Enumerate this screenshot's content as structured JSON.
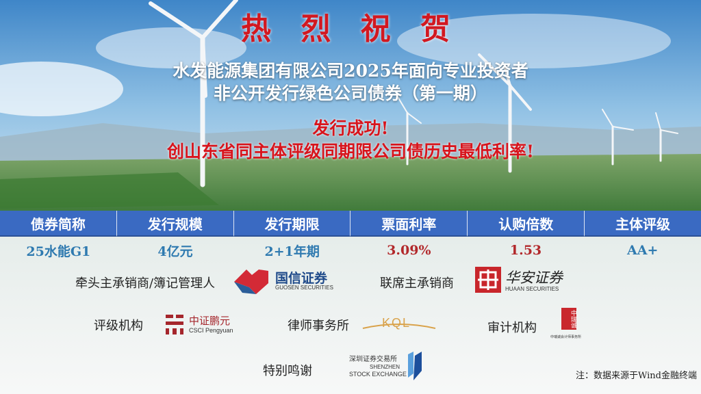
{
  "header": {
    "title": "热 烈 祝 贺",
    "subtitle_line1": "水发能源集团有限公司2025年面向专业投资者",
    "subtitle_line2": "非公开发行绿色公司债券（第一期）",
    "success": "发行成功!",
    "record": "创山东省同主体评级同期限公司债历史最低利率!"
  },
  "table": {
    "headers": [
      "债券简称",
      "发行规模",
      "发行期限",
      "票面利率",
      "认购倍数",
      "主体评级"
    ],
    "values": [
      "25水能G1",
      "4亿元",
      "2+1年期",
      "3.09%",
      "1.53",
      "AA+"
    ]
  },
  "institutions": {
    "lead_label": "牵头主承销商/簿记管理人",
    "lead_logo_cn": "国信证券",
    "lead_logo_en": "GUOSEN SECURITIES",
    "joint_label": "联席主承销商",
    "joint_logo_cn": "华安证券",
    "joint_logo_en": "HUAAN SECURITIES",
    "rating_label": "评级机构",
    "rating_logo_cn": "中证鹏元",
    "rating_logo_en": "CSCI Pengyuan",
    "law_label": "律师事务所",
    "law_logo": "KQL",
    "audit_label": "审计机构",
    "audit_logo_cn": "中瑞诚",
    "audit_logo_sub": "中瑞诚会计师事务所",
    "thanks_label": "特别鸣谢",
    "thanks_logo_cn": "深圳证券交易所",
    "thanks_logo_en1": "SHENZHEN",
    "thanks_logo_en2": "STOCK EXCHANGE"
  },
  "note": "注：数据来源于Wind金融终端",
  "colors": {
    "title_red": "#d21820",
    "table_header": "#3a6ac2",
    "value_blue": "#2f7ab0",
    "value_red": "#b2282b"
  }
}
